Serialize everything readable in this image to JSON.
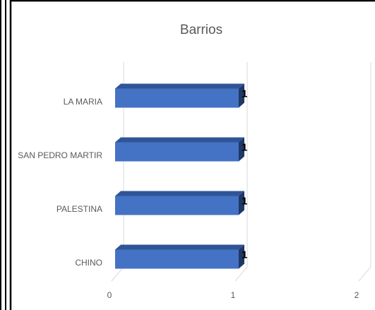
{
  "chart_data": {
    "type": "bar",
    "orientation": "horizontal",
    "title": "Barrios",
    "categories": [
      "LA MARIA",
      "SAN PEDRO MARTIR",
      "PALESTINA",
      "CHINO"
    ],
    "values": [
      1,
      1,
      1,
      1
    ],
    "color": "#4472c4",
    "xlim": [
      0,
      2
    ],
    "xticks": [
      0,
      1,
      2
    ],
    "grid": true,
    "data_labels": true
  }
}
